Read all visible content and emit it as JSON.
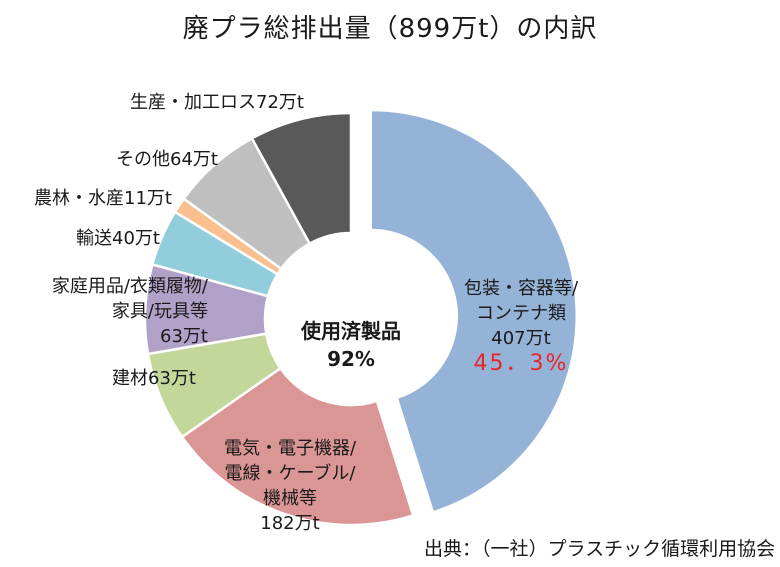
{
  "title": "廃プラ総排出量（899万t）の内訳",
  "source": "出典：（一社）プラスチック循環利用協会",
  "center": {
    "line1": "使用済製品",
    "line2": "92%"
  },
  "chart_data": {
    "type": "pie",
    "total": 899,
    "unit": "万t",
    "slices": [
      {
        "name": "包装・容器等/コンテナ類",
        "value": 407,
        "percent": "45．3%",
        "color": "#95b3d7",
        "exploded": true
      },
      {
        "name": "電気・電子機器/電線・ケーブル/機械等",
        "value": 182,
        "color": "#da9694"
      },
      {
        "name": "建材",
        "value": 63,
        "color": "#c4d79b"
      },
      {
        "name": "家庭用品/衣類履物/家具/玩具等",
        "value": 63,
        "color": "#b1a0c7"
      },
      {
        "name": "輸送",
        "value": 40,
        "color": "#92cddc"
      },
      {
        "name": "農林・水産",
        "value": 11,
        "color": "#fabf8f"
      },
      {
        "name": "その他",
        "value": 64,
        "color": "#bfbfbf"
      },
      {
        "name": "生産・加工ロス",
        "value": 72,
        "color": "#595959"
      }
    ]
  },
  "labels": {
    "packaging": {
      "l1": "包装・容器等/",
      "l2": "コンテナ類",
      "l3": "407万t",
      "l4": "45．3%"
    },
    "electric": {
      "l1": "電気・電子機器/",
      "l2": "電線・ケーブル/",
      "l3": "機械等",
      "l4": "182万t"
    },
    "building": {
      "l1": "建材63万t"
    },
    "household": {
      "l1": "家庭用品/衣類履物/",
      "l2": "家具/玩具等",
      "l3": "63万t"
    },
    "transport": {
      "l1": "輸送40万t"
    },
    "agri": {
      "l1": "農林・水産11万t"
    },
    "other": {
      "l1": "その他64万t"
    },
    "loss": {
      "l1": "生産・加工ロス72万t"
    }
  }
}
